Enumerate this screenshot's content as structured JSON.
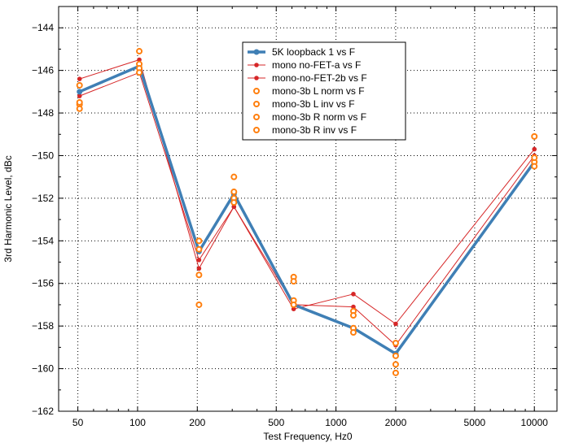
{
  "chart_data": {
    "type": "line",
    "xlabel": "Test Frequency, Hz0",
    "ylabel": "3rd Harmonic Level, dBc",
    "xscale": "log",
    "xlim": [
      40,
      13000
    ],
    "ylim": [
      -162,
      -143
    ],
    "x_ticks": [
      50,
      100,
      200,
      500,
      1000,
      2000,
      5000,
      10000
    ],
    "x_tick_labels": [
      "50",
      "100",
      "200",
      "500",
      "1000",
      "2000",
      "5000",
      "10000"
    ],
    "y_ticks": [
      -162,
      -160,
      -158,
      -156,
      -154,
      -152,
      -150,
      -148,
      -146,
      -144
    ],
    "y_tick_labels": [
      "−162",
      "−160",
      "−158",
      "−156",
      "−154",
      "−152",
      "−150",
      "−148",
      "−146",
      "−144"
    ],
    "grid": true,
    "legend_position": "top-center",
    "x": [
      51,
      102,
      204,
      306,
      612,
      1224,
      2000,
      10000
    ],
    "series": [
      {
        "name": "5K loopback 1 vs F",
        "style": "thick-line",
        "color": "#3f7fb5",
        "values": [
          -147.0,
          -145.8,
          -154.5,
          -151.8,
          -157.0,
          -158.1,
          -159.3,
          -150.3
        ]
      },
      {
        "name": "mono no-FET-a vs F",
        "style": "line-dot",
        "color": "#d62728",
        "values": [
          -146.4,
          -145.5,
          -155.3,
          -152.4,
          -157.2,
          -156.5,
          -157.9,
          -149.7
        ]
      },
      {
        "name": "mono-no-FET-2b vs F",
        "style": "line-dot",
        "color": "#d62728",
        "values": [
          -147.2,
          -146.1,
          -154.9,
          -152.4,
          -157.0,
          -157.1,
          -158.9,
          -150.0
        ]
      },
      {
        "name": "mono-3b L norm vs F",
        "style": "ring",
        "color": "#ff7f0e",
        "values": [
          -146.7,
          -145.1,
          -154.0,
          -151.0,
          -155.7,
          -157.3,
          -158.8,
          -149.1
        ]
      },
      {
        "name": "mono-3b L inv vs F",
        "style": "ring",
        "color": "#ff7f0e",
        "values": [
          -147.6,
          -145.7,
          -155.6,
          -151.7,
          -155.9,
          -157.5,
          -159.4,
          -150.3
        ]
      },
      {
        "name": "mono-3b R norm vs F",
        "style": "ring",
        "color": "#ff7f0e",
        "values": [
          -147.8,
          -145.9,
          -154.4,
          -152.0,
          -156.8,
          -158.1,
          -159.8,
          -150.5
        ]
      },
      {
        "name": "mono-3b R inv vs F",
        "style": "ring",
        "color": "#ff7f0e",
        "values": [
          -147.5,
          -146.1,
          -157.0,
          -152.2,
          -157.0,
          -158.3,
          -160.2,
          -150.1
        ]
      }
    ]
  }
}
